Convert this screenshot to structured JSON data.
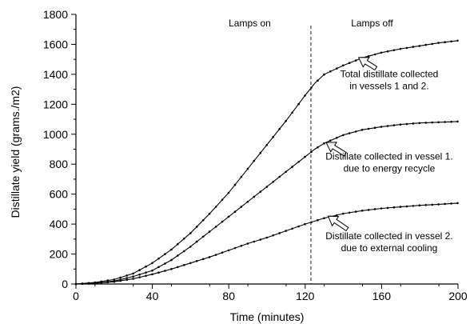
{
  "chart_data": {
    "type": "line",
    "xlabel": "Time (minutes)",
    "ylabel": "Distillate yield (grams./m2)",
    "xlim": [
      0,
      200
    ],
    "ylim": [
      0,
      1800
    ],
    "x_ticks": [
      0,
      40,
      80,
      120,
      160,
      200
    ],
    "y_ticks": [
      0,
      200,
      400,
      600,
      800,
      1000,
      1200,
      1400,
      1600,
      1800
    ],
    "grid": false,
    "lamp_switch_x": 123,
    "phase_labels": {
      "on": "Lamps on",
      "off": "Lamps off"
    },
    "series": [
      {
        "key": "total",
        "annotation": [
          "Total distillate collected",
          "in vessels 1 and 2."
        ],
        "points": [
          [
            0,
            0
          ],
          [
            10,
            10
          ],
          [
            20,
            30
          ],
          [
            30,
            70
          ],
          [
            40,
            140
          ],
          [
            50,
            230
          ],
          [
            60,
            340
          ],
          [
            70,
            470
          ],
          [
            80,
            610
          ],
          [
            90,
            770
          ],
          [
            100,
            930
          ],
          [
            110,
            1090
          ],
          [
            120,
            1260
          ],
          [
            125,
            1340
          ],
          [
            130,
            1400
          ],
          [
            140,
            1460
          ],
          [
            150,
            1510
          ],
          [
            160,
            1545
          ],
          [
            170,
            1570
          ],
          [
            180,
            1590
          ],
          [
            190,
            1610
          ],
          [
            200,
            1625
          ]
        ]
      },
      {
        "key": "vessel1",
        "annotation": [
          "Distillate collected in vessel 1.",
          "due to energy recycle"
        ],
        "points": [
          [
            0,
            0
          ],
          [
            10,
            5
          ],
          [
            20,
            20
          ],
          [
            30,
            50
          ],
          [
            40,
            90
          ],
          [
            50,
            160
          ],
          [
            60,
            250
          ],
          [
            70,
            350
          ],
          [
            80,
            450
          ],
          [
            90,
            550
          ],
          [
            100,
            650
          ],
          [
            110,
            750
          ],
          [
            120,
            850
          ],
          [
            125,
            900
          ],
          [
            130,
            940
          ],
          [
            140,
            995
          ],
          [
            150,
            1030
          ],
          [
            160,
            1050
          ],
          [
            170,
            1065
          ],
          [
            180,
            1075
          ],
          [
            190,
            1080
          ],
          [
            200,
            1085
          ]
        ]
      },
      {
        "key": "vessel2",
        "annotation": [
          "Distillate collected in vessel 2.",
          "due to external cooling"
        ],
        "points": [
          [
            0,
            0
          ],
          [
            10,
            5
          ],
          [
            20,
            15
          ],
          [
            30,
            35
          ],
          [
            40,
            65
          ],
          [
            50,
            100
          ],
          [
            60,
            140
          ],
          [
            70,
            180
          ],
          [
            80,
            225
          ],
          [
            90,
            270
          ],
          [
            100,
            310
          ],
          [
            110,
            355
          ],
          [
            120,
            400
          ],
          [
            130,
            440
          ],
          [
            140,
            470
          ],
          [
            150,
            490
          ],
          [
            160,
            505
          ],
          [
            170,
            515
          ],
          [
            180,
            525
          ],
          [
            190,
            532
          ],
          [
            200,
            540
          ]
        ]
      }
    ]
  }
}
